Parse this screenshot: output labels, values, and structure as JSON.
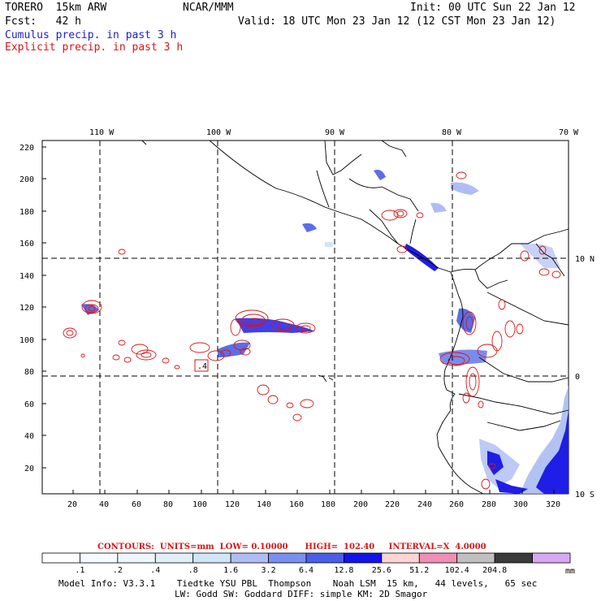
{
  "header": {
    "model": "TORERO  15km ARW",
    "center": "NCAR/MMM",
    "init": "Init: 00 UTC Sun 22 Jan 12",
    "fcst": "Fcst:   42 h",
    "valid": "Valid: 18 UTC Mon 23 Jan 12 (12 CST Mon 23 Jan 12)",
    "field1": "Cumulus precip. in past 3 h",
    "field2": "Explicit precip. in past 3 h"
  },
  "map": {
    "lon_labels": [
      "110 W",
      "100 W",
      "90 W",
      "80 W",
      "70 W"
    ],
    "lat_labels": [
      "10 N",
      "0",
      "10 S"
    ],
    "y_ticks": [
      "220",
      "200",
      "180",
      "160",
      "140",
      "120",
      "100",
      "80",
      "60",
      "40",
      "20"
    ],
    "x_ticks": [
      "20",
      "40",
      "60",
      "80",
      "100",
      "120",
      "140",
      "160",
      "180",
      "200",
      "220",
      "240",
      "260",
      "280",
      "300",
      "320"
    ],
    "box_label": ".4",
    "colors": {
      "coast": "#000000",
      "contour": "#dc1414",
      "cumulus_dark": "#1e1ee6",
      "cumulus_light": "#9fb4f0"
    }
  },
  "contours_line": "CONTOURS:  UNITS=mm  LOW= 0.10000      HIGH=  102.40     INTERVAL=X  4.0000",
  "colorbar": {
    "unit": "mm",
    "labels": [
      ".1",
      ".2",
      ".4",
      ".8",
      "1.6",
      "3.2",
      "6.4",
      "12.8",
      "25.6",
      "51.2",
      "102.4",
      "204.8"
    ],
    "colors": [
      "#ffffff",
      "#f5fbff",
      "#eef6fb",
      "#e0f0f6",
      "#cfe6f6",
      "#b0bdf5",
      "#7a8ff0",
      "#4a5ee8",
      "#1414e6",
      "#ffd4d4",
      "#f08fb5",
      "#c0c0c0",
      "#3a3a3a",
      "#d8a8f5"
    ]
  },
  "footer": {
    "line1": "Model Info: V3.3.1    Tiedtke YSU PBL  Thompson    Noah LSM  15 km,   44 levels,   65 sec",
    "line2": "LW: Godd SW: Goddard DIFF: simple KM: 2D Smagor"
  }
}
